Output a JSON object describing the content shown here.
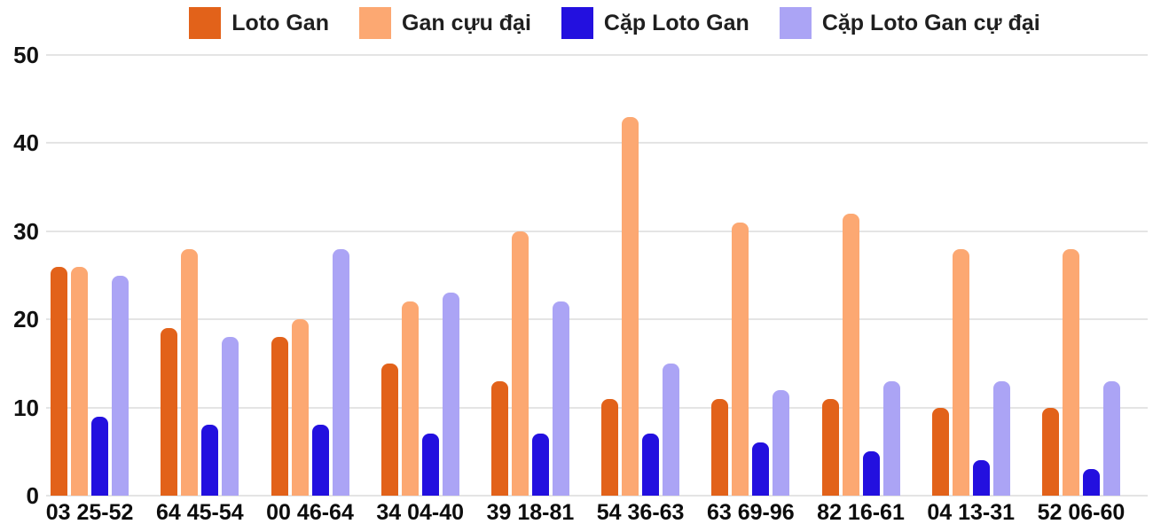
{
  "chart_data": {
    "type": "bar",
    "categories": [
      "03 25-52",
      "64 45-54",
      "00 46-64",
      "34 04-40",
      "39 18-81",
      "54 36-63",
      "63 69-96",
      "82 16-61",
      "04 13-31",
      "52 06-60"
    ],
    "series": [
      {
        "name": "Loto Gan",
        "color": "#e2621a",
        "values": [
          26,
          19,
          18,
          15,
          13,
          11,
          11,
          11,
          10,
          10
        ]
      },
      {
        "name": "Gan cựu đại",
        "color": "#fca872",
        "values": [
          26,
          28,
          20,
          22,
          30,
          43,
          31,
          32,
          28,
          28
        ]
      },
      {
        "name": "Cặp Loto Gan",
        "color": "#2310df",
        "values": [
          9,
          8,
          8,
          7,
          7,
          7,
          6,
          5,
          4,
          3
        ]
      },
      {
        "name": "Cặp Loto Gan cự đại",
        "color": "#aba4f5",
        "values": [
          25,
          18,
          28,
          23,
          22,
          15,
          12,
          13,
          13,
          13
        ]
      }
    ],
    "title": "",
    "xlabel": "",
    "ylabel": "",
    "ylim": [
      0,
      50
    ],
    "yticks": [
      0,
      10,
      20,
      30,
      40,
      50
    ],
    "grid": true,
    "legend_position": "top",
    "background": "#ffffff",
    "gridline_color": "#e4e4e4",
    "axis_text_color": "#111111"
  }
}
